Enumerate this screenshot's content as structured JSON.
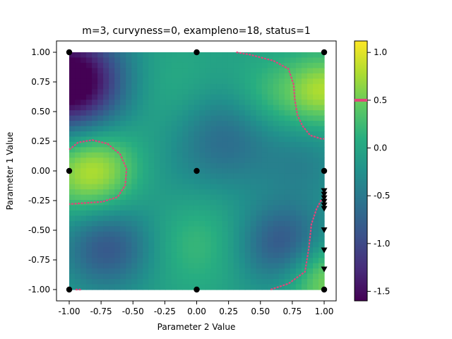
{
  "chart_data": {
    "type": "heatmap",
    "title": "m=3, curvyness=0, exampleno=18, status=1",
    "xlabel": "Parameter 2 Value",
    "ylabel": "Parameter 1 Value",
    "xlim": [
      -1.0,
      1.0
    ],
    "ylim": [
      -1.0,
      1.0
    ],
    "colormap": "viridis",
    "color_range": [
      -1.6,
      1.12
    ],
    "x_ticks": [
      "-1.00",
      "-0.75",
      "-0.50",
      "-0.25",
      "0.00",
      "0.25",
      "0.50",
      "0.75",
      "1.00"
    ],
    "x_tick_values": [
      -1.0,
      -0.75,
      -0.5,
      -0.25,
      0.0,
      0.25,
      0.5,
      0.75,
      1.0
    ],
    "y_ticks": [
      "-1.00",
      "-0.75",
      "-0.50",
      "-0.25",
      "0.00",
      "0.25",
      "0.50",
      "0.75",
      "1.00"
    ],
    "y_tick_values": [
      -1.0,
      -0.75,
      -0.5,
      -0.25,
      0.0,
      0.25,
      0.5,
      0.75,
      1.0
    ],
    "colorbar": {
      "ticks": [
        "-1.5",
        "-1.0",
        "-0.5",
        "0.0",
        "0.5",
        "1.0"
      ],
      "tick_values": [
        -1.5,
        -1.0,
        -0.5,
        0.0,
        0.5,
        1.0
      ],
      "threshold": 0.5,
      "threshold_color": "#e0457b"
    },
    "grid": false,
    "contour_color": "#e0457b",
    "contour_level": 0.5,
    "grid_points": {
      "marker": "circle",
      "color": "#000000",
      "points": [
        [
          -1,
          1
        ],
        [
          0,
          1
        ],
        [
          1,
          1
        ],
        [
          -1,
          0
        ],
        [
          0,
          0
        ],
        [
          1,
          0
        ],
        [
          -1,
          -1
        ],
        [
          0,
          -1
        ],
        [
          1,
          -1
        ]
      ]
    },
    "sample_points": {
      "marker": "triangle-down",
      "color": "#000000",
      "points": [
        [
          1,
          -0.17
        ],
        [
          1,
          -0.2
        ],
        [
          1,
          -0.23
        ],
        [
          1,
          -0.26
        ],
        [
          1,
          -0.29
        ],
        [
          1,
          -0.32
        ],
        [
          1,
          -0.5
        ],
        [
          1,
          -0.67
        ],
        [
          1,
          -0.83
        ]
      ]
    }
  }
}
